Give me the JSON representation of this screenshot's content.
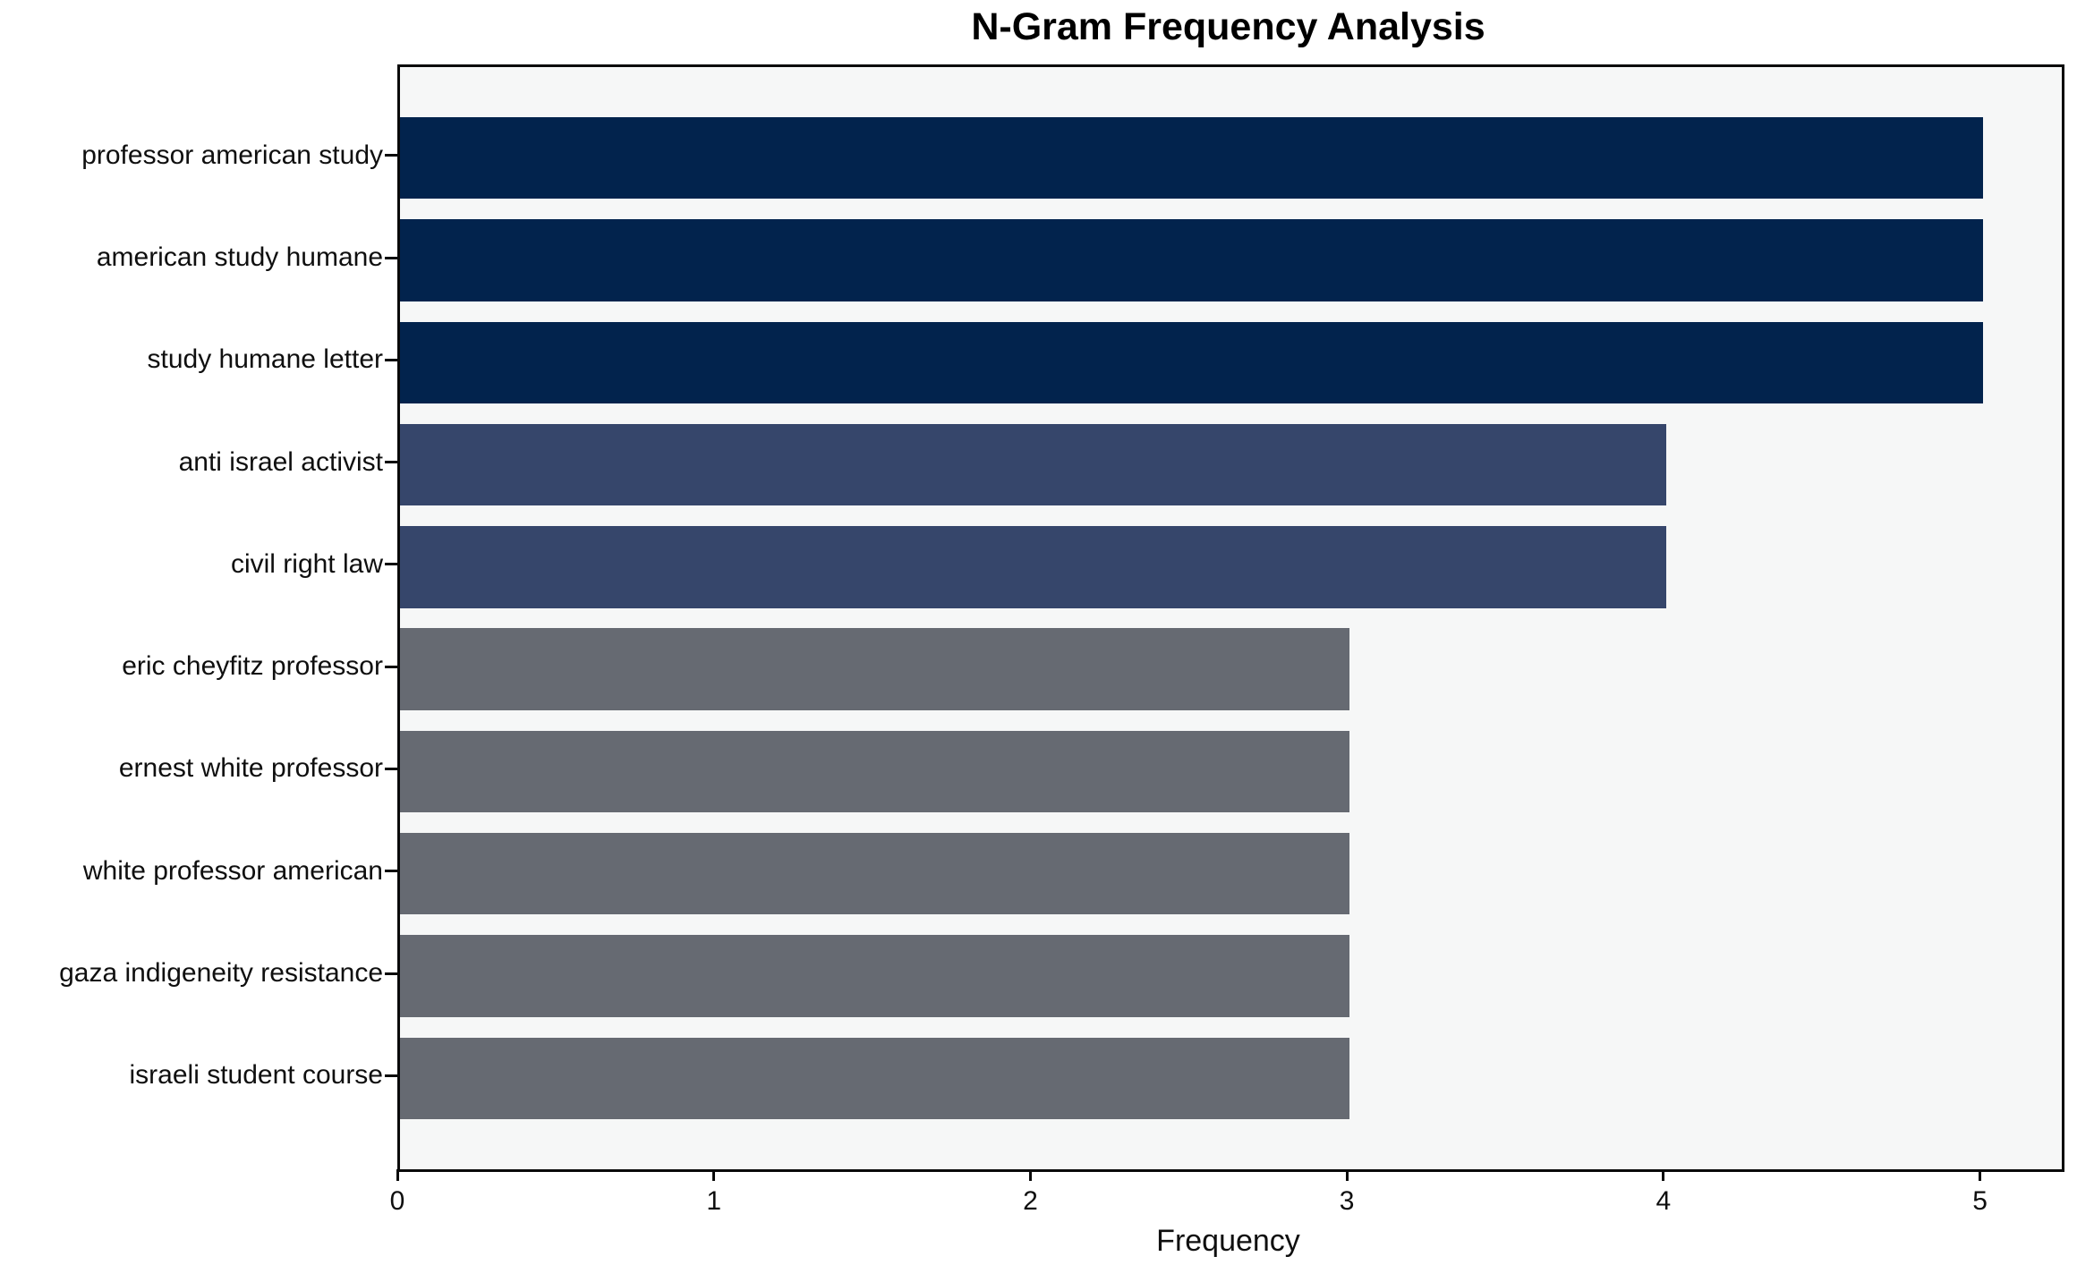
{
  "chart_data": {
    "type": "bar",
    "orientation": "horizontal",
    "title": "N-Gram Frequency Analysis",
    "xlabel": "Frequency",
    "ylabel": "",
    "categories": [
      "professor american study",
      "american study humane",
      "study humane letter",
      "anti israel activist",
      "civil right law",
      "eric cheyfitz professor",
      "ernest white professor",
      "white professor american",
      "gaza indigeneity resistance",
      "israeli student course"
    ],
    "values": [
      5,
      5,
      5,
      4,
      4,
      3,
      3,
      3,
      3,
      3
    ],
    "bar_colors": [
      "#02234d",
      "#02234d",
      "#02234d",
      "#36466b",
      "#36466b",
      "#666a72",
      "#666a72",
      "#666a72",
      "#666a72",
      "#666a72"
    ],
    "color_by_value": {
      "5": "#02234d",
      "4": "#36466b",
      "3": "#666a72"
    },
    "xticks": [
      0,
      1,
      2,
      3,
      4,
      5
    ],
    "xlim": [
      0,
      5.25
    ],
    "grid": false,
    "legend": null,
    "plot_background": "#f6f7f7",
    "figure_background": "#ffffff",
    "spine_color": "#0a0a0a"
  }
}
